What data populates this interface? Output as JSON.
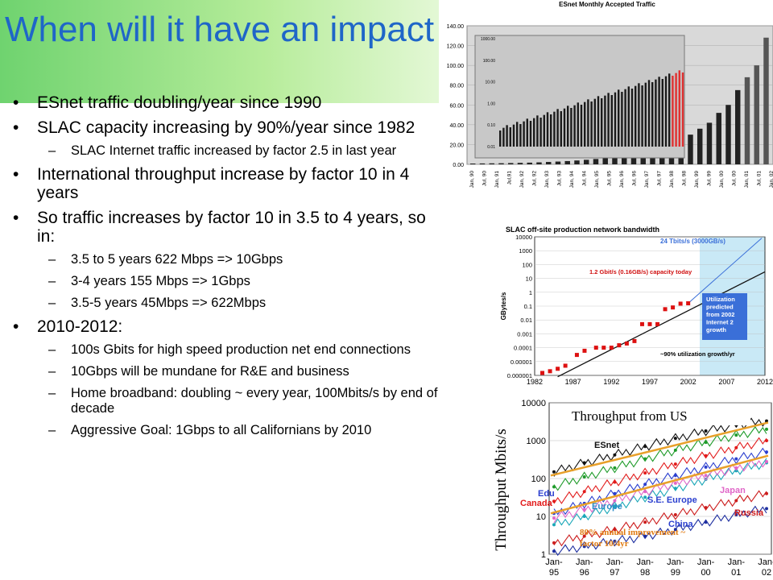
{
  "slide": {
    "title": "When will it have an impact",
    "bullets": [
      {
        "level": 1,
        "text": "ESnet traffic doubling/year since 1990"
      },
      {
        "level": 1,
        "text": "SLAC capacity increasing by 90%/year since 1982"
      },
      {
        "level": 2,
        "text": "SLAC Internet traffic increased by factor 2.5 in last year"
      },
      {
        "level": 1,
        "text": "International throughput increase by factor 10 in 4 years"
      },
      {
        "level": 1,
        "text": "So traffic increases by factor 10 in 3.5 to 4 years, so in:"
      },
      {
        "level": 2,
        "text": "3.5 to 5 years 622 Mbps => 10Gbps"
      },
      {
        "level": 2,
        "text": "3-4 years 155 Mbps => 1Gbps"
      },
      {
        "level": 2,
        "text": "3.5-5 years 45Mbps => 622Mbps"
      },
      {
        "level": 1,
        "text": "2010-2012:"
      },
      {
        "level": 2,
        "text": "100s Gbits for high speed production net end connections"
      },
      {
        "level": 2,
        "text": "10Gbps will be mundane for R&E and business"
      },
      {
        "level": 2,
        "text": "Home broadband: doubling ~ every year, 100Mbits/s by end of decade"
      },
      {
        "level": 2,
        "text": "Aggressive Goal: 1Gbps to all Californians by 2010"
      }
    ]
  },
  "chart_data": [
    {
      "type": "bar",
      "title": "ESnet Monthly Accepted Traffic",
      "ylim": [
        0,
        140
      ],
      "yticks": [
        "0.00",
        "20.00",
        "40.00",
        "60.00",
        "80.00",
        "100.00",
        "120.00",
        "140.00"
      ],
      "xticks": [
        "Jan, 90",
        "Jul, 90",
        "Jan, 91",
        "Jul,91",
        "Jan, 92",
        "Jul, 92",
        "Jan, 93",
        "Jul, 93",
        "Jan, 94",
        "Jul, 94",
        "Jan, 95",
        "Jul, 95",
        "Jan, 96",
        "Jul, 96",
        "Jan, 97",
        "Jul, 97",
        "Jan, 98",
        "Jul, 98",
        "Jan, 99",
        "Jul, 99",
        "Jan, 00",
        "Jul, 00",
        "Jan, 01",
        "Jul, 01",
        "Jan, 02"
      ],
      "values": [
        0.8,
        0.9,
        1.0,
        1.1,
        1.3,
        1.5,
        1.7,
        2.0,
        2.4,
        2.8,
        3.3,
        3.9,
        4.6,
        5.4,
        6.4,
        7.5,
        8.9,
        10.5,
        12.4,
        14.6,
        17.2,
        20.3,
        24.0,
        30.0,
        36.0,
        42.0,
        52.0,
        60.0,
        75.0,
        88.0,
        100.0,
        128.0
      ],
      "inset": {
        "scale": "log",
        "yticks": [
          "1000.00",
          "100.00",
          "10.00",
          "1.00",
          "0.10",
          "0.01"
        ]
      },
      "colors": {
        "bar": "#222222",
        "highlight": "#e03030"
      }
    },
    {
      "type": "scatter",
      "title": "SLAC off-site production network bandwidth",
      "ylabel": "GBytes/s",
      "scale": "log",
      "yticks": [
        "10000",
        "1000",
        "100",
        "10",
        "1",
        "0.1",
        "0.01",
        "0.001",
        "0.0001",
        "0.00001",
        "0.000001"
      ],
      "xticks": [
        "1982",
        "1987",
        "1992",
        "1997",
        "2002",
        "2007",
        "2012"
      ],
      "annotations": [
        "24 Tbits/s (3000GB/s)",
        "1.2 Gbit/s (0.16GB/s) capacity today",
        "Utilization predicted from 2002 Internet 2 growth",
        "~90% utilization growth/yr"
      ],
      "series": [
        {
          "x": [
            1983,
            1984,
            1985,
            1986,
            1987.5,
            1988.5,
            1990,
            1991,
            1992,
            1993,
            1994,
            1995,
            1996,
            1997,
            1998,
            1999,
            2000,
            2001,
            2002
          ],
          "values": [
            1.5e-06,
            2e-06,
            3e-06,
            5e-06,
            3e-05,
            6e-05,
            0.0001,
            0.0001,
            0.0001,
            0.00015,
            0.0002,
            0.0003,
            0.005,
            0.005,
            0.005,
            0.06,
            0.08,
            0.15,
            0.16
          ]
        }
      ],
      "colors": {
        "points": "#dd1111",
        "trend": "#111111",
        "prediction": "#3a6fd8",
        "shade": "#c9e9f6"
      }
    },
    {
      "type": "line",
      "title": "Throughput from US",
      "ylabel": "Throughput Mbits/s",
      "scale": "log",
      "yticks": [
        "10000",
        "1000",
        "100",
        "10",
        "1"
      ],
      "xticks": [
        "Jan-95",
        "Jan-96",
        "Jan-97",
        "Jan-98",
        "Jan-99",
        "Jan-00",
        "Jan-01",
        "Jan-02"
      ],
      "labels": [
        "ESnet",
        "Edu",
        "Canada",
        "Europe",
        "S.E. Europe",
        "Japan",
        "China",
        "Russia"
      ],
      "annotation": "80% annual improvement ~ factor 10/4yr",
      "series": [
        {
          "name": "ESnet",
          "values": [
            150,
            260,
            420,
            700,
            1150,
            1800,
            2600,
            3300
          ]
        },
        {
          "name": "Edu",
          "values": [
            60,
            110,
            190,
            330,
            560,
            900,
            1400,
            2000
          ]
        },
        {
          "name": "Canada",
          "values": [
            25,
            45,
            80,
            140,
            240,
            400,
            650,
            1000
          ]
        },
        {
          "name": "Europe",
          "values": [
            12,
            22,
            40,
            70,
            120,
            200,
            330,
            500
          ]
        },
        {
          "name": "S.E. Europe",
          "values": [
            6,
            10,
            18,
            32,
            55,
            95,
            160,
            260
          ]
        },
        {
          "name": "Japan",
          "values": [
            9,
            15,
            26,
            45,
            75,
            120,
            190,
            280
          ]
        },
        {
          "name": "China",
          "values": [
            1.2,
            1.6,
            2.2,
            3,
            4.5,
            7,
            11,
            16
          ]
        },
        {
          "name": "Russia",
          "values": [
            2,
            3,
            4.5,
            7,
            11,
            17,
            26,
            40
          ]
        }
      ],
      "colors": {
        "ESnet": "#111111",
        "Edu": "#1f9b2a",
        "Canada": "#e21b1b",
        "Europe": "#2b3fcf",
        "S.E. Europe": "#1aa7b8",
        "Japan": "#e066c8",
        "China": "#1e2fa0",
        "Russia": "#cc1d1d",
        "trend": "#e8a02a"
      }
    }
  ]
}
